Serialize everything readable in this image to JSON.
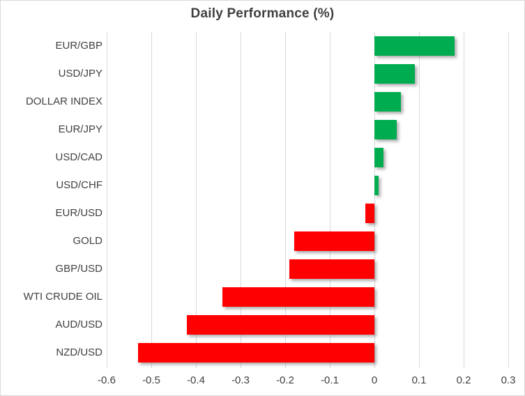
{
  "chart_data": {
    "type": "bar",
    "orientation": "horizontal",
    "title": "Daily Performance (%)",
    "categories": [
      "EUR/GBP",
      "USD/JPY",
      "DOLLAR INDEX",
      "EUR/JPY",
      "USD/CAD",
      "USD/CHF",
      "EUR/USD",
      "GOLD",
      "GBP/USD",
      "WTI CRUDE OIL",
      "AUD/USD",
      "NZD/USD"
    ],
    "values": [
      0.18,
      0.09,
      0.06,
      0.05,
      0.02,
      0.01,
      -0.02,
      -0.18,
      -0.19,
      -0.34,
      -0.42,
      -0.53
    ],
    "xlim": [
      -0.6,
      0.3
    ],
    "xticks": [
      -0.6,
      -0.5,
      -0.4,
      -0.3,
      -0.2,
      -0.1,
      0,
      0.1,
      0.2,
      0.3
    ],
    "xtick_labels": [
      "-0.6",
      "-0.5",
      "-0.4",
      "-0.3",
      "-0.2",
      "-0.1",
      "0",
      "0.1",
      "0.2",
      "0.3"
    ],
    "xlabel": "",
    "ylabel": "",
    "grid": true,
    "legend": false,
    "colors": {
      "positive": "#00ac50",
      "negative": "#ff0000",
      "gridline": "#d9d9d9",
      "text": "#404040",
      "title_text": "#3f3f3f",
      "border": "#d9d9d9",
      "background": "#ffffff"
    }
  }
}
